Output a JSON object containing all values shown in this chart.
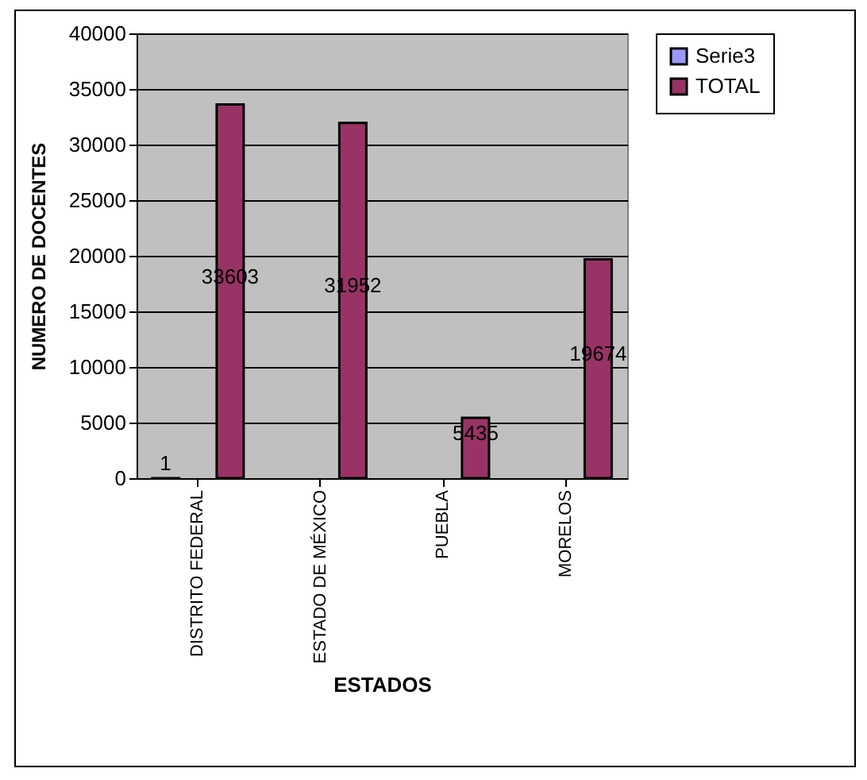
{
  "chart_data": {
    "type": "bar",
    "xlabel": "ESTADOS",
    "ylabel": "NUMERO DE DOCENTES",
    "categories": [
      "DISTRITO FEDERAL",
      "ESTADO DE MÉXICO",
      "PUEBLA",
      "MORELOS"
    ],
    "series": [
      {
        "name": "Serie3",
        "color": "#9999ff",
        "values": [
          1,
          null,
          null,
          null
        ],
        "value_labels": [
          "1",
          null,
          null,
          null
        ]
      },
      {
        "name": "TOTAL",
        "color": "#993366",
        "values": [
          33603,
          31952,
          5435,
          19674
        ],
        "value_labels": [
          "33603",
          "31952",
          "5435",
          "19674"
        ]
      }
    ],
    "ylim": [
      0,
      40000
    ],
    "yticks": [
      0,
      5000,
      10000,
      15000,
      20000,
      25000,
      30000,
      35000,
      40000
    ],
    "grid": "y",
    "legend": "right"
  }
}
